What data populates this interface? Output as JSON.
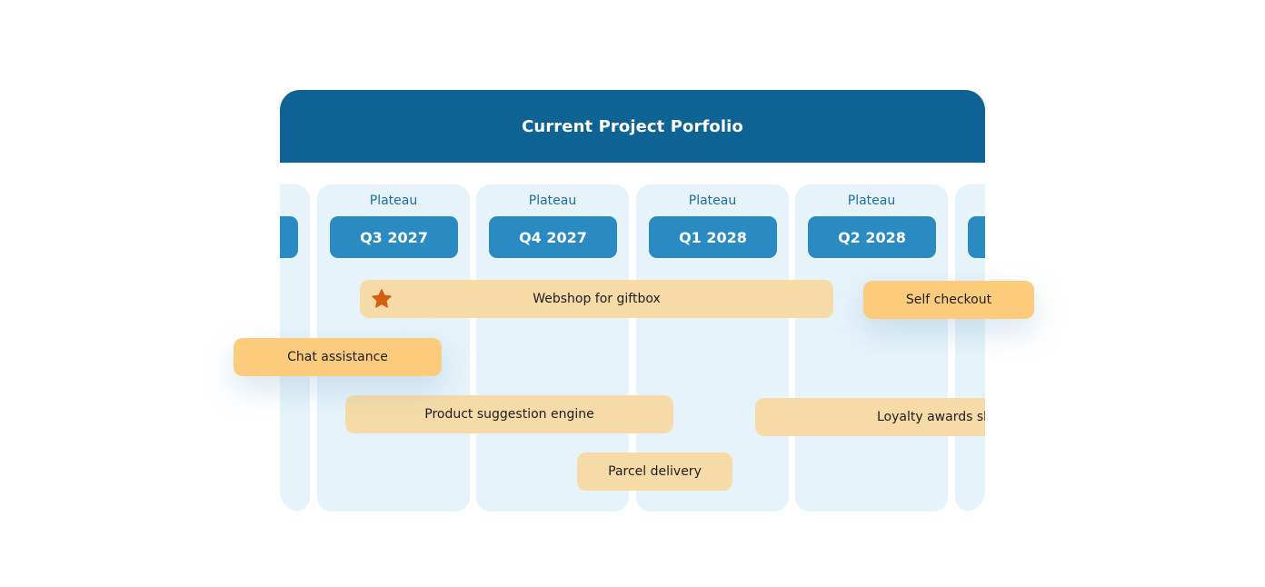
{
  "header": {
    "title": "Current Project Porfolio"
  },
  "columns": [
    {
      "label": "",
      "quarter": ""
    },
    {
      "label": "Plateau",
      "quarter": "Q3 2027"
    },
    {
      "label": "Plateau",
      "quarter": "Q4 2027"
    },
    {
      "label": "Plateau",
      "quarter": "Q1 2028"
    },
    {
      "label": "Plateau",
      "quarter": "Q2 2028"
    },
    {
      "label": "",
      "quarter": ""
    }
  ],
  "projects": {
    "webshop": "Webshop for giftbox",
    "self_checkout": "Self checkout",
    "chat_assistance": "Chat assistance",
    "product_suggestion": "Product suggestion engine",
    "loyalty": "Loyalty awards sh",
    "parcel": "Parcel delivery"
  },
  "icons": {
    "webshop_marker": "star-icon"
  },
  "colors": {
    "header": "#0f6294",
    "column": "#e6f3fa",
    "quarter_pill": "#2a8ac2",
    "project_bar": "#f6dba8",
    "highlight_bar": "#fdcb7c",
    "star": "#d2600f"
  }
}
